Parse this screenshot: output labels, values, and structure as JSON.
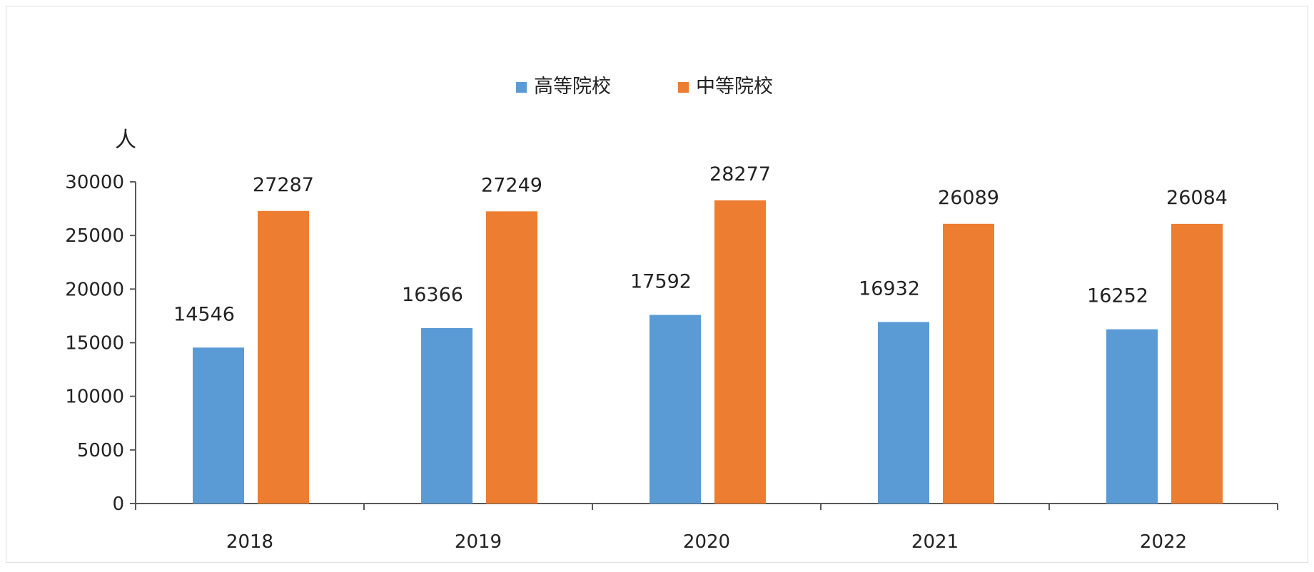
{
  "chart_data": {
    "type": "bar",
    "title": "",
    "xlabel": "",
    "ylabel": "人",
    "categories": [
      "2018",
      "2019",
      "2020",
      "2021",
      "2022"
    ],
    "series": [
      {
        "name": "高等院校",
        "color": "#5b9bd5",
        "values": [
          14546,
          16366,
          17592,
          16932,
          16252
        ]
      },
      {
        "name": "中等院校",
        "color": "#ed7d31",
        "values": [
          27287,
          27249,
          28277,
          26089,
          26084
        ]
      }
    ],
    "ylim": [
      0,
      30000
    ],
    "yticks": [
      0,
      5000,
      10000,
      15000,
      20000,
      25000,
      30000
    ],
    "grid": false,
    "legend_position": "top-center"
  }
}
